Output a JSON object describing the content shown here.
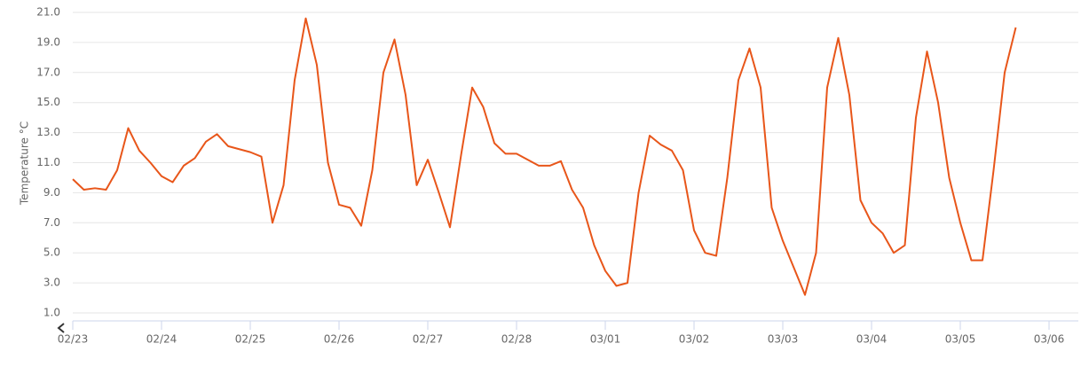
{
  "chart_data": {
    "type": "line",
    "y_label": "Temperature °C",
    "categories": [
      "02/23",
      null,
      null,
      null,
      null,
      null,
      null,
      null,
      "02/24",
      null,
      null,
      null,
      null,
      null,
      null,
      null,
      "02/25",
      null,
      null,
      null,
      null,
      null,
      null,
      null,
      "02/26",
      null,
      null,
      null,
      null,
      null,
      null,
      null,
      "02/27",
      null,
      null,
      null,
      null,
      null,
      null,
      null,
      "02/28",
      null,
      null,
      null,
      null,
      null,
      null,
      null,
      "03/01",
      null,
      null,
      null,
      null,
      null,
      null,
      null,
      "03/02",
      null,
      null,
      null,
      null,
      null,
      null,
      null,
      "03/03",
      null,
      null,
      null,
      null,
      null,
      null,
      null,
      "03/04",
      null,
      null,
      null,
      null,
      null,
      null,
      null,
      "03/05",
      null,
      null,
      null,
      null,
      null,
      null,
      null,
      "03/06"
    ],
    "series": [
      {
        "name": "Temperature",
        "color": "#e8561a",
        "values": [
          9.9,
          9.2,
          9.3,
          9.2,
          10.5,
          13.3,
          11.8,
          11.0,
          10.1,
          9.7,
          10.8,
          11.3,
          12.4,
          12.9,
          12.1,
          11.9,
          11.7,
          11.4,
          7.0,
          9.5,
          16.5,
          20.6,
          17.5,
          11.0,
          8.2,
          8.0,
          6.8,
          10.5,
          17.0,
          19.2,
          15.5,
          9.5,
          11.2,
          9.0,
          6.7,
          11.5,
          16.0,
          14.7,
          12.3,
          11.6,
          11.6,
          11.2,
          10.8,
          10.8,
          11.1,
          9.2,
          8.0,
          5.5,
          3.8,
          2.8,
          3.0,
          9.0,
          12.8,
          12.2,
          11.8,
          10.5,
          6.5,
          5.0,
          4.8,
          10.0,
          16.5,
          18.6,
          16.0,
          8.0,
          5.8,
          4.0,
          2.2,
          5.0,
          16.0,
          19.3,
          15.5,
          8.5,
          7.0,
          6.3,
          5.0,
          5.5,
          14.0,
          18.4,
          15.0,
          10.0,
          7.0,
          4.5,
          4.5,
          10.5,
          17.0,
          20.0,
          null,
          null,
          null
        ]
      }
    ],
    "ylim": [
      1,
      21
    ],
    "yticks": [
      {
        "value": 1,
        "label": "1.0"
      },
      {
        "value": 3,
        "label": "3.0"
      },
      {
        "value": 5,
        "label": "5.0"
      },
      {
        "value": 7,
        "label": "7.0"
      },
      {
        "value": 9,
        "label": "9.0"
      },
      {
        "value": 11,
        "label": "11.0"
      },
      {
        "value": 13,
        "label": "13.0"
      },
      {
        "value": 15,
        "label": "15.0"
      },
      {
        "value": 17,
        "label": "17.0"
      },
      {
        "value": 19,
        "label": "19.0"
      },
      {
        "value": 21,
        "label": "21.0"
      }
    ],
    "grid": true
  }
}
